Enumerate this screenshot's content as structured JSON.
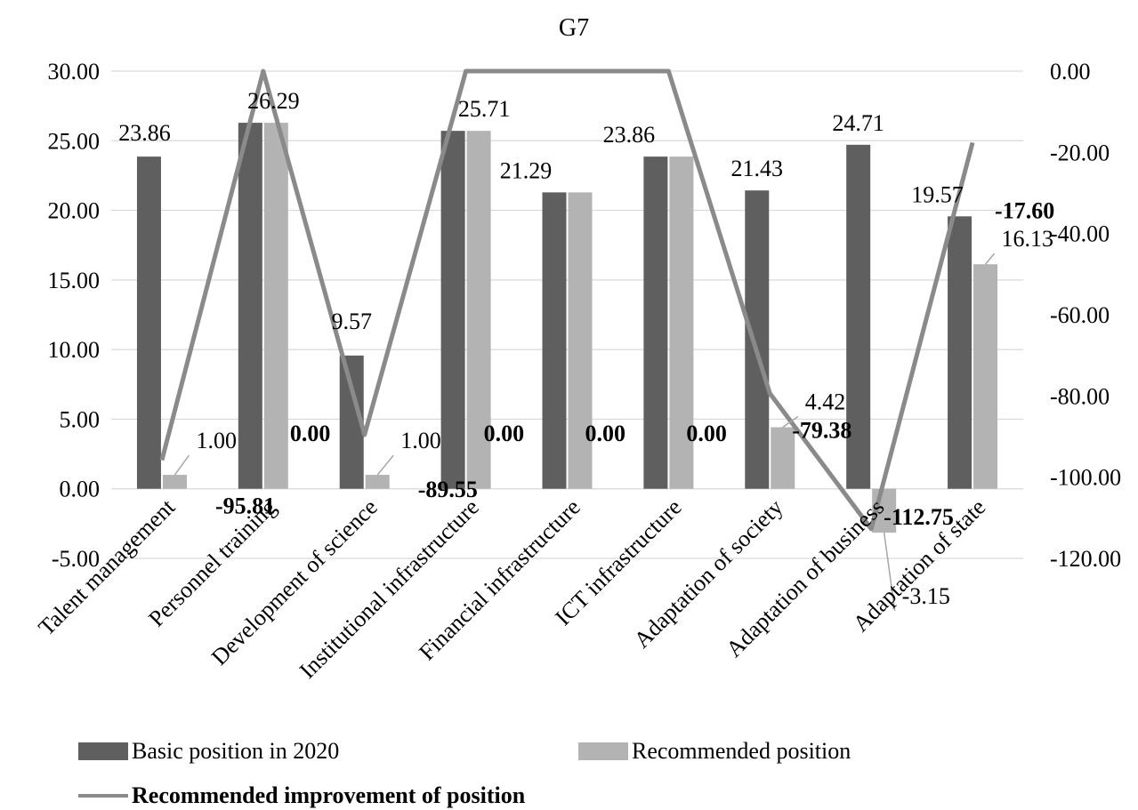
{
  "chart_data": {
    "type": "bar",
    "title": "G7",
    "categories": [
      "Talent management",
      "Personnel training",
      "Development of science",
      "Institutional infrastructure",
      "Financial infrastructure",
      "ICT infrastructure",
      "Adaptation of society",
      "Adaptation of business",
      "Adaptation of state"
    ],
    "series": [
      {
        "name": "Basic position in 2020",
        "type": "bar",
        "axis": "left",
        "color": "#5f5f5f",
        "values": [
          23.86,
          26.29,
          9.57,
          25.71,
          21.29,
          23.86,
          21.43,
          24.71,
          19.57
        ],
        "labels": [
          "23.86",
          "26.29",
          "9.57",
          "25.71",
          "21.29",
          "23.86",
          "21.43",
          "24.71",
          "19.57"
        ]
      },
      {
        "name": "Recommended position",
        "type": "bar",
        "axis": "left",
        "color": "#b3b3b3",
        "values": [
          1.0,
          26.29,
          1.0,
          25.71,
          21.29,
          23.86,
          4.42,
          -3.15,
          16.13
        ],
        "labels": [
          "1.00",
          "",
          "1.00",
          "",
          "",
          "",
          "4.42",
          "-3.15",
          "16.13"
        ]
      },
      {
        "name": "Recommended improvement of position",
        "type": "line",
        "axis": "right",
        "color": "#8a8a8a",
        "values": [
          -95.81,
          0.0,
          -89.55,
          0.0,
          0.0,
          0.0,
          -79.38,
          -112.75,
          -17.6
        ],
        "labels": [
          "-95.81",
          "0.00",
          "-89.55",
          "0.00",
          "0.00",
          "0.00",
          "-79.38",
          "-112.75",
          "-17.60"
        ]
      }
    ],
    "y_left": {
      "min": -5,
      "max": 30,
      "ticks": [
        "30.00",
        "25.00",
        "20.00",
        "15.00",
        "10.00",
        "5.00",
        "0.00",
        "-5.00"
      ]
    },
    "y_right": {
      "min": -120,
      "max": 0,
      "ticks": [
        "0.00",
        "-20.00",
        "-40.00",
        "-60.00",
        "-80.00",
        "-100.00",
        "-120.00"
      ]
    },
    "grid": true,
    "legend_position": "bottom"
  },
  "legend": {
    "basic": "Basic position in 2020",
    "recommended": "Recommended position",
    "improvement": "Recommended improvement of position"
  }
}
